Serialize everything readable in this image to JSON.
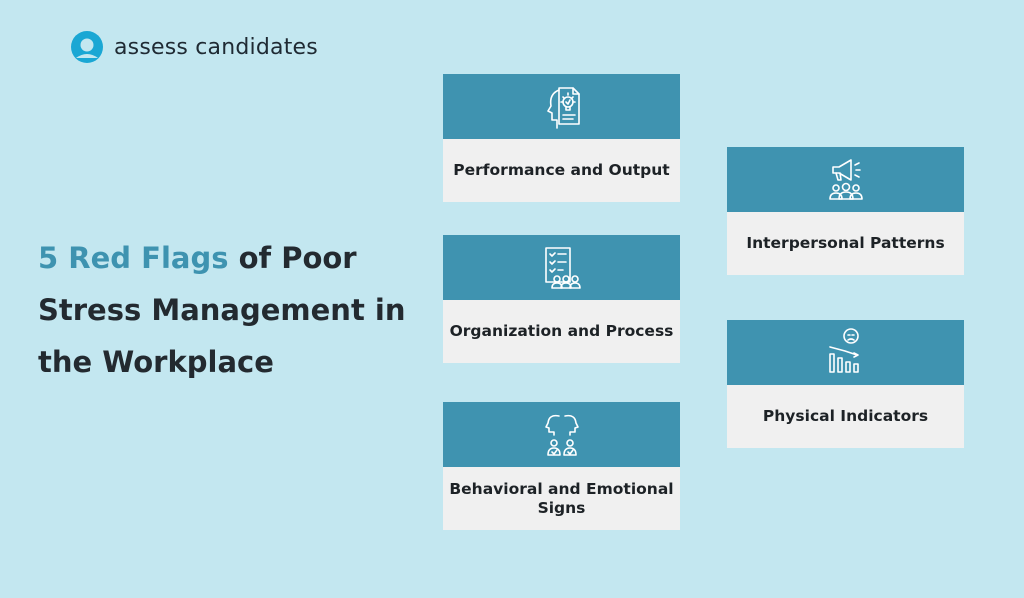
{
  "brand": {
    "name": "assess candidates",
    "logo_icon": "assess-candidates-logo-icon",
    "color": "#1aa7d4"
  },
  "headline": {
    "accent": "5 Red Flags",
    "rest": " of Poor Stress Management in the Workplace",
    "accent_color": "#3e93b0"
  },
  "cards": [
    {
      "label": "Performance and Output",
      "icon": "head-with-lightbulb-document-icon"
    },
    {
      "label": "Organization and Process",
      "icon": "checklist-team-icon"
    },
    {
      "label": "Behavioral and Emotional Signs",
      "icon": "two-people-dialogue-icon"
    },
    {
      "label": "Interpersonal Patterns",
      "icon": "megaphone-audience-icon"
    },
    {
      "label": "Physical Indicators",
      "icon": "sad-face-declining-chart-icon"
    }
  ],
  "colors": {
    "background": "#c3e7f0",
    "card_header": "#3f93b0",
    "card_body": "#f0f0f0"
  }
}
